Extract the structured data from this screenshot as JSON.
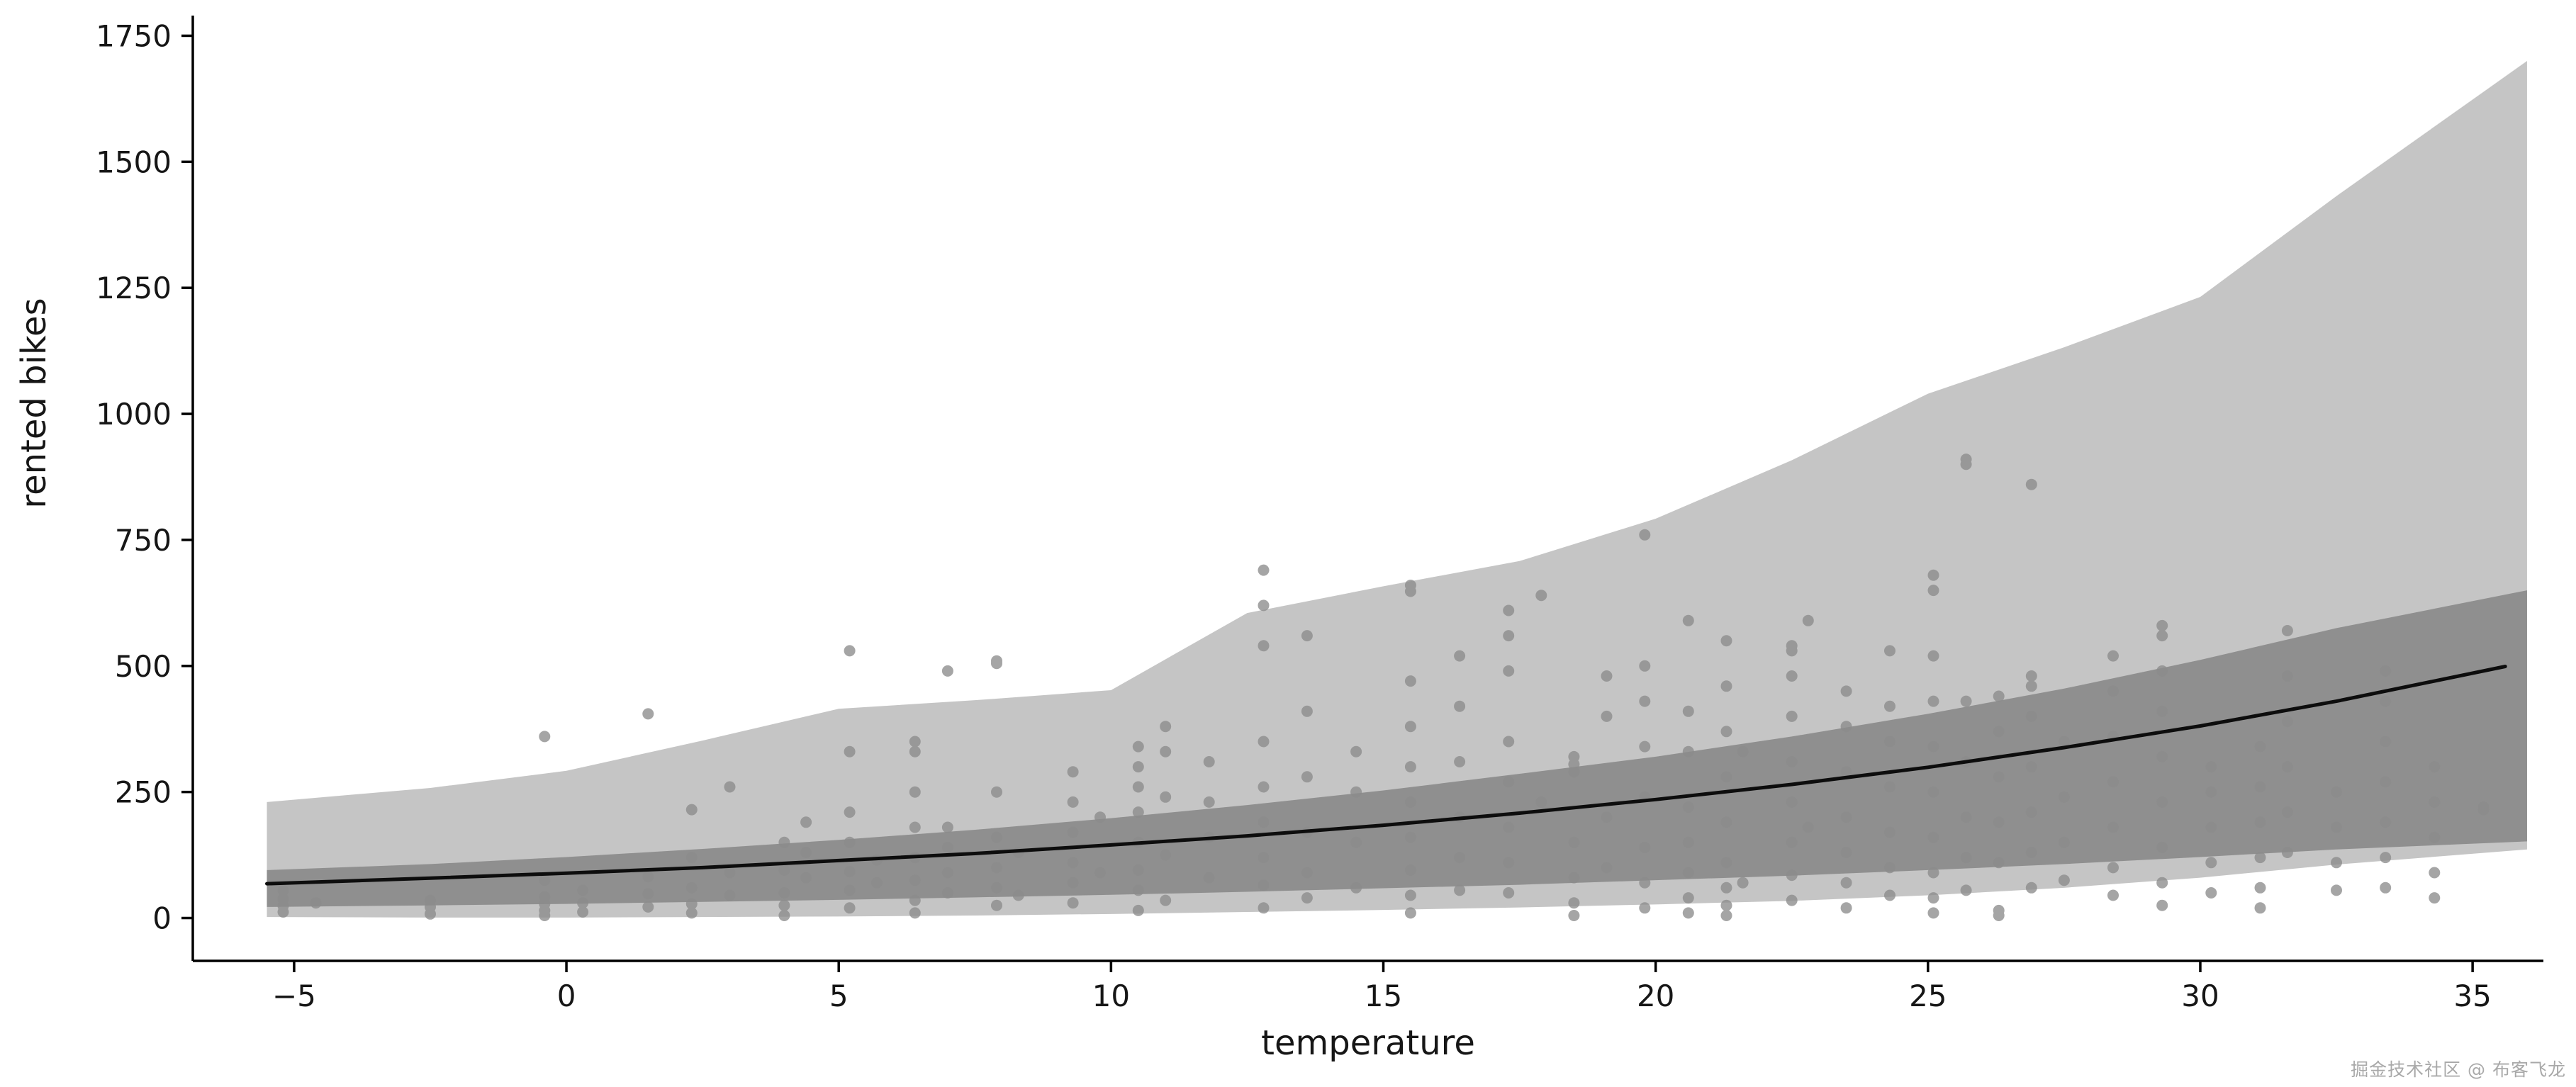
{
  "watermark": {
    "text": "掘金技术社区 @ 布客飞龙"
  },
  "chart_data": {
    "type": "scatter",
    "title": "",
    "xlabel": "temperature",
    "ylabel": "rented bikes",
    "xlim": [
      -6.86,
      36.3
    ],
    "ylim": [
      -85,
      1790
    ],
    "grid": false,
    "legend": "none",
    "xticks": [
      -5,
      0,
      5,
      10,
      15,
      20,
      25,
      30,
      35
    ],
    "xtick_labels": [
      "−5",
      "0",
      "5",
      "10",
      "15",
      "20",
      "25",
      "30",
      "35"
    ],
    "yticks": [
      0,
      250,
      500,
      750,
      1000,
      1250,
      1500,
      1750
    ],
    "ytick_labels": [
      "0",
      "250",
      "500",
      "750",
      "1000",
      "1250",
      "1500",
      "1750"
    ],
    "colors": {
      "outer_band": "#c5c5c5",
      "inner_band": "#8f8f8f",
      "points": "#8c8c8c",
      "mean_line": "#0d0d0d",
      "axis": "#000000",
      "tick_text": "#161616"
    },
    "bands": {
      "x": [
        -5.5,
        -2.5,
        0,
        2.5,
        5,
        7.5,
        10,
        12.5,
        15,
        17.5,
        20,
        22.5,
        25,
        27.5,
        30,
        32.5,
        36.0
      ],
      "outer_top": [
        230,
        258,
        292,
        352,
        415,
        432,
        452,
        605,
        658,
        708,
        792,
        908,
        1040,
        1132,
        1232,
        1432,
        1700
      ],
      "outer_bottom": [
        2,
        1,
        1,
        2,
        3,
        5,
        8,
        12,
        16,
        21,
        27,
        34,
        45,
        60,
        80,
        106,
        136
      ],
      "inner_top": [
        95,
        107,
        121,
        137,
        155,
        175,
        198,
        224,
        253,
        286,
        320,
        360,
        405,
        455,
        512,
        575,
        650
      ],
      "inner_bottom": [
        22,
        25,
        28,
        32,
        36,
        41,
        46,
        52,
        59,
        66,
        75,
        84,
        95,
        107,
        121,
        136,
        152
      ]
    },
    "mean_line": {
      "x": [
        -5.5,
        -2.5,
        0,
        2.5,
        5,
        7.5,
        10,
        12.5,
        15,
        17.5,
        20,
        22.5,
        25,
        27.5,
        30,
        32.5,
        35.6
      ],
      "y": [
        68,
        79,
        89,
        100,
        114,
        128,
        145,
        163,
        184,
        208,
        235,
        265,
        299,
        338,
        381,
        430,
        499
      ]
    },
    "point_clusters": [
      {
        "x": -5.2,
        "ys": [
          12,
          24,
          38,
          55
        ]
      },
      {
        "x": -4.6,
        "ys": [
          30
        ]
      },
      {
        "x": -2.5,
        "ys": [
          8,
          22,
          35
        ]
      },
      {
        "x": -0.4,
        "ys": [
          5,
          15,
          28,
          42,
          75,
          360
        ]
      },
      {
        "x": 0.3,
        "ys": [
          12,
          30,
          55
        ]
      },
      {
        "x": 1.5,
        "ys": [
          22,
          48,
          82,
          405
        ]
      },
      {
        "x": 2.3,
        "ys": [
          10,
          28,
          60,
          120,
          215
        ]
      },
      {
        "x": 3.0,
        "ys": [
          45,
          90,
          260
        ]
      },
      {
        "x": 4.0,
        "ys": [
          5,
          25,
          50,
          95,
          150
        ]
      },
      {
        "x": 4.4,
        "ys": [
          80,
          130,
          190
        ]
      },
      {
        "x": 5.2,
        "ys": [
          20,
          55,
          92,
          150,
          210,
          330,
          530
        ]
      },
      {
        "x": 5.7,
        "ys": [
          70,
          115
        ]
      },
      {
        "x": 6.4,
        "ys": [
          10,
          35,
          75,
          120,
          180,
          250,
          330,
          350
        ]
      },
      {
        "x": 7.0,
        "ys": [
          50,
          90,
          140,
          180,
          490
        ]
      },
      {
        "x": 7.9,
        "ys": [
          25,
          60,
          100,
          160,
          250,
          505,
          510
        ]
      },
      {
        "x": 8.3,
        "ys": [
          45,
          130
        ]
      },
      {
        "x": 9.3,
        "ys": [
          30,
          70,
          110,
          170,
          230,
          290
        ]
      },
      {
        "x": 9.8,
        "ys": [
          90,
          200
        ]
      },
      {
        "x": 10.5,
        "ys": [
          15,
          55,
          95,
          150,
          210,
          260,
          300,
          340
        ]
      },
      {
        "x": 11.0,
        "ys": [
          35,
          125,
          240,
          330,
          380
        ]
      },
      {
        "x": 11.8,
        "ys": [
          80,
          160,
          230,
          310
        ]
      },
      {
        "x": 12.8,
        "ys": [
          20,
          65,
          120,
          190,
          260,
          350,
          540,
          620,
          690
        ]
      },
      {
        "x": 13.6,
        "ys": [
          40,
          90,
          170,
          280,
          410,
          560
        ]
      },
      {
        "x": 14.5,
        "ys": [
          60,
          150,
          250,
          330
        ]
      },
      {
        "x": 15.5,
        "ys": [
          10,
          45,
          95,
          160,
          230,
          300,
          380,
          470,
          648,
          660
        ]
      },
      {
        "x": 16.4,
        "ys": [
          55,
          120,
          200,
          310,
          420,
          520
        ]
      },
      {
        "x": 17.3,
        "ys": [
          50,
          110,
          180,
          270,
          350,
          490,
          560,
          610
        ]
      },
      {
        "x": 17.9,
        "ys": [
          230,
          640
        ]
      },
      {
        "x": 18.5,
        "ys": [
          5,
          30,
          80,
          150,
          290,
          305,
          320
        ]
      },
      {
        "x": 19.1,
        "ys": [
          100,
          200,
          400,
          480
        ]
      },
      {
        "x": 19.8,
        "ys": [
          20,
          70,
          140,
          240,
          340,
          430,
          500,
          760
        ]
      },
      {
        "x": 20.6,
        "ys": [
          10,
          40,
          90,
          150,
          220,
          330,
          410,
          590
        ]
      },
      {
        "x": 21.3,
        "ys": [
          5,
          25,
          60,
          110,
          190,
          280,
          370,
          460,
          550
        ]
      },
      {
        "x": 21.6,
        "ys": [
          70,
          330
        ]
      },
      {
        "x": 22.5,
        "ys": [
          35,
          85,
          150,
          230,
          310,
          400,
          480,
          530,
          540
        ]
      },
      {
        "x": 22.8,
        "ys": [
          180,
          590
        ]
      },
      {
        "x": 23.5,
        "ys": [
          20,
          70,
          130,
          200,
          290,
          380,
          450
        ]
      },
      {
        "x": 24.3,
        "ys": [
          45,
          100,
          170,
          260,
          350,
          420,
          530
        ]
      },
      {
        "x": 25.1,
        "ys": [
          10,
          40,
          90,
          160,
          250,
          340,
          430,
          520,
          650,
          680
        ]
      },
      {
        "x": 25.7,
        "ys": [
          55,
          120,
          200,
          310,
          430,
          900,
          910
        ]
      },
      {
        "x": 26.3,
        "ys": [
          5,
          15,
          110,
          190,
          280,
          370,
          440
        ]
      },
      {
        "x": 26.9,
        "ys": [
          60,
          130,
          210,
          300,
          400,
          460,
          480,
          860
        ]
      },
      {
        "x": 27.5,
        "ys": [
          75,
          150,
          240,
          350
        ]
      },
      {
        "x": 28.4,
        "ys": [
          45,
          100,
          180,
          270,
          360,
          450,
          520
        ]
      },
      {
        "x": 29.3,
        "ys": [
          25,
          70,
          140,
          230,
          320,
          410,
          490,
          560,
          580
        ]
      },
      {
        "x": 30.2,
        "ys": [
          50,
          110,
          180,
          250,
          300
        ]
      },
      {
        "x": 31.1,
        "ys": [
          20,
          60,
          120,
          190,
          260,
          340
        ]
      },
      {
        "x": 31.6,
        "ys": [
          130,
          210,
          300,
          390,
          480,
          570
        ]
      },
      {
        "x": 32.5,
        "ys": [
          55,
          110,
          180,
          250
        ]
      },
      {
        "x": 33.4,
        "ys": [
          60,
          120,
          190,
          270,
          350,
          430,
          490
        ]
      },
      {
        "x": 34.3,
        "ys": [
          40,
          90,
          160,
          230,
          300
        ]
      },
      {
        "x": 35.2,
        "ys": [
          215,
          220
        ]
      }
    ]
  }
}
